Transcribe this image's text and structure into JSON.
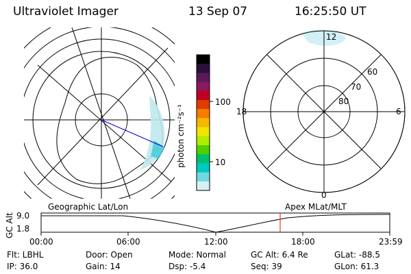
{
  "header": {
    "instrument": "Ultraviolet Imager",
    "date": "13 Sep 07",
    "time": "16:25:50 UT"
  },
  "geo_panel": {
    "label": "Geographic Lat/Lon"
  },
  "color_bar": {
    "unit_label": "photon cm⁻²s⁻¹",
    "ticks": [
      "100",
      "10"
    ],
    "colors": [
      "#000000",
      "#2b0f3c",
      "#5b1a57",
      "#8b1860",
      "#c00020",
      "#e03c00",
      "#f47d00",
      "#f5b800",
      "#f0e600",
      "#b0ec00",
      "#50d000",
      "#00c070",
      "#00c8c0",
      "#70d8e0",
      "#d8f0f4"
    ]
  },
  "polar_panel": {
    "label": "Apex MLat/MLT",
    "mlt_labels": {
      "top": "12",
      "left": "18",
      "right": "6",
      "bottom": "0"
    },
    "mlat_labels": [
      "60",
      "70",
      "80"
    ]
  },
  "altitude_strip": {
    "axis_label": "GC Alt",
    "y_ticks": [
      "9.0",
      "1.8"
    ],
    "x_ticks": [
      "00:00",
      "06:00",
      "12:00",
      "18:00",
      "23:59"
    ],
    "current_marker_time": "16:25:50",
    "marker_color": "#ff0000"
  },
  "status": {
    "filter": "Flt: LBHL",
    "ip": "IP: 36.0",
    "door": "Door: Open",
    "gain": "Gain: 14",
    "mode": "Mode: Normal",
    "dsp": "Dsp:   -5.4",
    "gc_alt": "GC Alt: 6.4 Re",
    "seq": "Seq: 39",
    "glat": "GLat: -88.5",
    "glon": "GLon:  61.3"
  }
}
